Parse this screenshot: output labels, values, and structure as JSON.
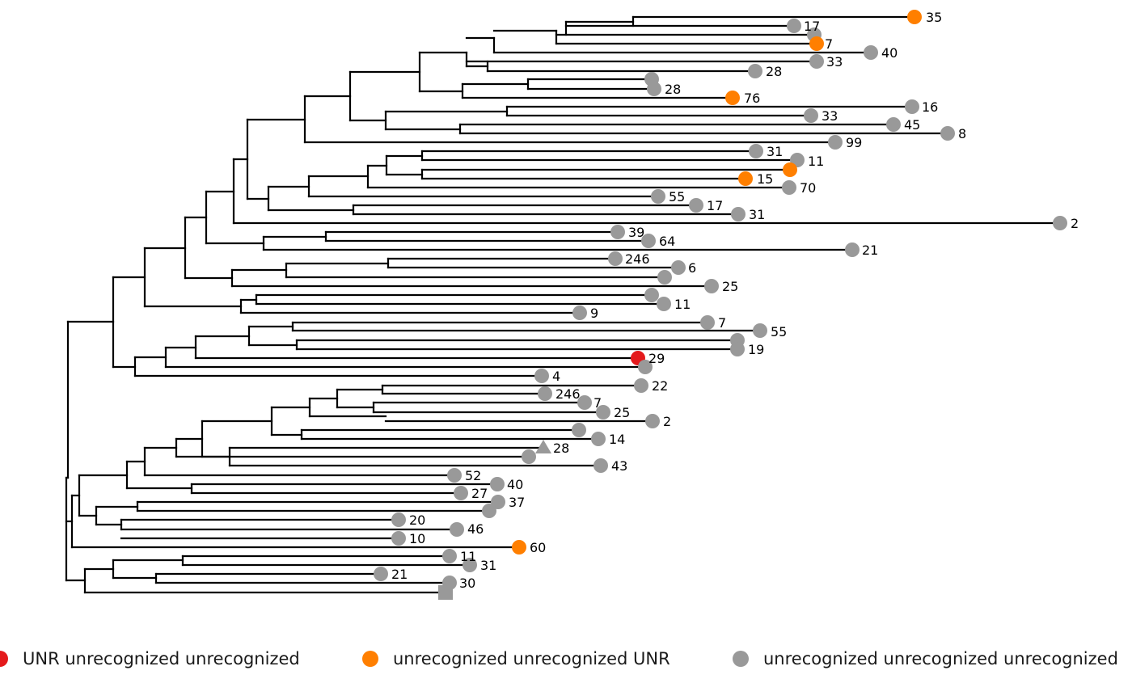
{
  "colors": {
    "branch": "#000000",
    "UNR_unrecognized_unrecognized": "#e41a1c",
    "unrecognized_unrecognized_UNR": "#ff7f00",
    "unrecognized_unrecognized_unrecognized": "#999999"
  },
  "legend": [
    {
      "label": "UNR unrecognized unrecognized",
      "color": "#e41a1c"
    },
    {
      "label": "unrecognized unrecognized UNR",
      "color": "#ff7f00"
    },
    {
      "label": "unrecognized unrecognized unrecognized",
      "color": "#999999"
    }
  ],
  "tip_labels": [
    "35",
    "17",
    "7",
    "40",
    "33",
    "28",
    "28",
    "76",
    "16",
    "33",
    "45",
    "8",
    "99",
    "31",
    "11",
    "15",
    "70",
    "55",
    "17",
    "31",
    "2",
    "39",
    "64",
    "21",
    "246",
    "6",
    "25",
    "11",
    "9",
    "7",
    "55",
    "19",
    "29",
    "4",
    "22",
    "246",
    "7",
    "25",
    "2",
    "14",
    "28",
    "43",
    "52",
    "40",
    "27",
    "37",
    "20",
    "46",
    "10",
    "60",
    "11",
    "31",
    "21",
    "30"
  ]
}
